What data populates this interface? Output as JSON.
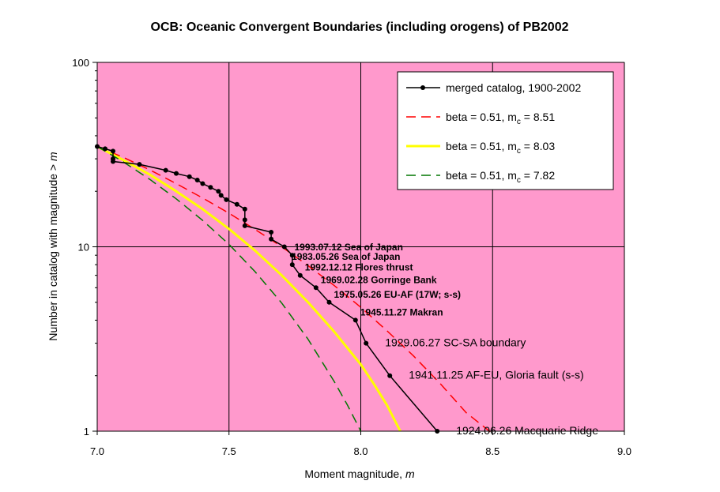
{
  "chart_data": {
    "type": "line",
    "title": "OCB: Oceanic Convergent Boundaries (including orogens) of PB2002",
    "xlabel_text": "Moment magnitude, ",
    "xlabel_var": "m",
    "ylabel_text": "Number in catalog with magnitude  >  ",
    "ylabel_var": "m",
    "xlim": [
      7.0,
      9.0
    ],
    "ylim": [
      1,
      100
    ],
    "yscale": "log",
    "grid": true,
    "x_ticks": [
      "7.0",
      "7.5",
      "8.0",
      "8.5",
      "9.0"
    ],
    "y_ticks": [
      "1",
      "10",
      "100"
    ],
    "plot_bg": "#ff99cc",
    "legend_position": "top-right",
    "series": [
      {
        "name": "merged catalog, 1900-2002",
        "style": "line-markers",
        "color": "#000000",
        "x": [
          7.0,
          7.03,
          7.06,
          7.06,
          7.06,
          7.16,
          7.26,
          7.3,
          7.35,
          7.38,
          7.4,
          7.43,
          7.46,
          7.47,
          7.49,
          7.53,
          7.56,
          7.56,
          7.56,
          7.66,
          7.66,
          7.71,
          7.74,
          7.74,
          7.77,
          7.83,
          7.88,
          7.98,
          8.02,
          8.11,
          8.29
        ],
        "y": [
          35,
          34,
          33,
          30,
          29,
          28,
          26,
          25,
          24,
          23,
          22,
          21,
          20,
          19,
          18,
          17,
          16,
          14,
          13,
          12,
          11,
          10,
          9,
          8,
          7,
          6,
          5,
          4,
          3,
          2,
          1
        ]
      },
      {
        "name_text": "beta = 0.51, m",
        "name_sub": "c",
        "name_value": " = 8.51",
        "style": "dashed",
        "color": "#ff0000",
        "x": [
          7.0,
          7.1,
          7.2,
          7.3,
          7.4,
          7.5,
          7.6,
          7.7,
          7.8,
          7.9,
          8.0,
          8.1,
          8.2,
          8.3,
          8.4,
          8.5
        ],
        "y": [
          35,
          30.5,
          26.1,
          22.0,
          18.4,
          15.2,
          12.4,
          10.0,
          7.9,
          6.15,
          4.7,
          3.5,
          2.56,
          1.82,
          1.26,
          0.97
        ]
      },
      {
        "name_text": "beta = 0.51, m",
        "name_sub": "c",
        "name_value": " = 8.03",
        "style": "solid",
        "color": "#ffff00",
        "x": [
          7.0,
          7.1,
          7.2,
          7.3,
          7.4,
          7.5,
          7.6,
          7.7,
          7.8,
          7.9,
          8.0,
          8.05,
          8.1,
          8.15
        ],
        "y": [
          35,
          29.5,
          24.6,
          20.0,
          16.0,
          12.5,
          9.5,
          7.0,
          5.0,
          3.45,
          2.3,
          1.8,
          1.38,
          1.0
        ]
      },
      {
        "name_text": "beta = 0.51, m",
        "name_sub": "c",
        "name_value": " = 7.82",
        "style": "dashed",
        "color": "#007700",
        "x": [
          7.0,
          7.1,
          7.2,
          7.3,
          7.4,
          7.5,
          7.6,
          7.7,
          7.8,
          7.9,
          7.95,
          8.0
        ],
        "y": [
          35,
          28.8,
          23.2,
          18.2,
          13.9,
          10.3,
          7.3,
          4.95,
          3.15,
          1.85,
          1.38,
          1.0
        ]
      }
    ],
    "annotations": [
      {
        "text": "1993.07.12 Sea of Japan",
        "x": 7.73,
        "y": 9,
        "size": "small"
      },
      {
        "text": "1983.05.26 Sea of Japan",
        "x": 7.72,
        "y": 8,
        "size": "small"
      },
      {
        "text": "1992.12.12 Flores thrust",
        "x": 7.77,
        "y": 7,
        "size": "small"
      },
      {
        "text": "1969.02.28 Gorringe Bank",
        "x": 7.83,
        "y": 6,
        "size": "small"
      },
      {
        "text": "1975.05.26 EU-AF (17W; s-s)",
        "x": 7.88,
        "y": 5,
        "size": "small"
      },
      {
        "text": "1945.11.27 Makran",
        "x": 7.98,
        "y": 4,
        "size": "small"
      },
      {
        "text": "1929.06.27 SC-SA boundary",
        "x": 8.02,
        "y": 3,
        "size": "large"
      },
      {
        "text": "1941.11.25 AF-EU, Gloria fault (s-s)",
        "x": 8.11,
        "y": 2,
        "size": "large"
      },
      {
        "text": "1924.06.26 Macquarie Ridge",
        "x": 8.29,
        "y": 1,
        "size": "large"
      }
    ]
  }
}
